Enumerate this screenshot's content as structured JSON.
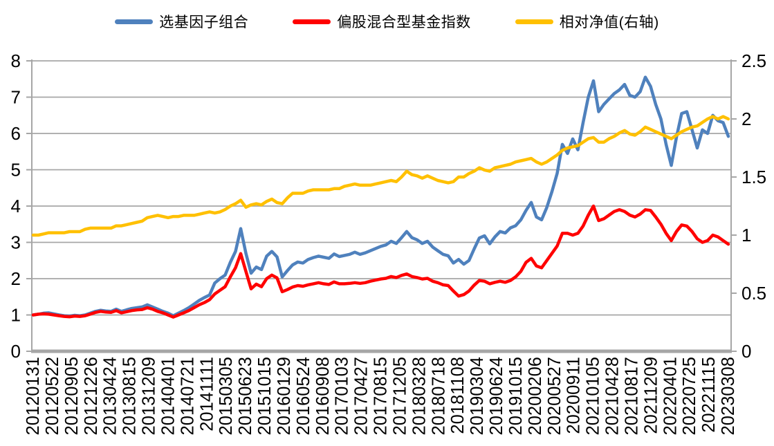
{
  "legend": {
    "items": [
      {
        "label": "选基因子组合",
        "color": "#4F81BD"
      },
      {
        "label": "偏股混合型基金指数",
        "color": "#FF0000"
      },
      {
        "label": "相对净值(右轴)",
        "color": "#FFC000"
      }
    ]
  },
  "chart_data": {
    "type": "line",
    "title": "",
    "grid": true,
    "legend_position": "top",
    "left_axis": {
      "ticks": [
        "0",
        "1",
        "2",
        "3",
        "4",
        "5",
        "6",
        "7",
        "8"
      ],
      "range": [
        0,
        8
      ]
    },
    "right_axis": {
      "ticks": [
        "0",
        "0.5",
        "1",
        "1.5",
        "2",
        "2.5"
      ],
      "range": [
        0,
        2.5
      ]
    },
    "x_labels": [
      "20120131",
      "20120522",
      "20120905",
      "20121226",
      "20130424",
      "20130815",
      "20131209",
      "20140401",
      "20140721",
      "20141111",
      "20150305",
      "20150623",
      "20151015",
      "20160129",
      "20160524",
      "20160908",
      "20170103",
      "20170427",
      "20170815",
      "20171205",
      "20180328",
      "20180718",
      "20181108",
      "20190304",
      "20190624",
      "20191015",
      "20200206",
      "20200527",
      "20200911",
      "20210105",
      "20210428",
      "20210817",
      "20211209",
      "20220401",
      "20220725",
      "20221115",
      "20230308"
    ],
    "sampling": "monthly 2012-01 to 2023-03",
    "series": [
      {
        "name": "选基因子组合",
        "axis": "left",
        "color": "#4F81BD",
        "values": [
          1.0,
          1.02,
          1.05,
          1.06,
          1.03,
          1.0,
          0.98,
          0.97,
          0.99,
          0.98,
          1.0,
          1.05,
          1.1,
          1.13,
          1.11,
          1.1,
          1.16,
          1.1,
          1.14,
          1.18,
          1.2,
          1.22,
          1.28,
          1.22,
          1.16,
          1.1,
          1.05,
          0.98,
          1.05,
          1.12,
          1.2,
          1.3,
          1.4,
          1.48,
          1.55,
          1.88,
          2.0,
          2.1,
          2.45,
          2.75,
          3.38,
          2.7,
          2.15,
          2.32,
          2.25,
          2.62,
          2.75,
          2.6,
          2.05,
          2.22,
          2.38,
          2.46,
          2.43,
          2.53,
          2.58,
          2.62,
          2.59,
          2.56,
          2.68,
          2.61,
          2.64,
          2.67,
          2.73,
          2.67,
          2.71,
          2.77,
          2.83,
          2.89,
          2.93,
          3.03,
          2.97,
          3.13,
          3.3,
          3.13,
          3.07,
          2.97,
          3.03,
          2.87,
          2.77,
          2.67,
          2.63,
          2.43,
          2.53,
          2.4,
          2.5,
          2.82,
          3.12,
          3.18,
          2.96,
          3.15,
          3.3,
          3.26,
          3.4,
          3.46,
          3.62,
          3.88,
          4.1,
          3.7,
          3.62,
          3.96,
          4.4,
          4.9,
          5.7,
          5.45,
          5.85,
          5.55,
          6.3,
          7.0,
          7.45,
          6.6,
          6.8,
          6.95,
          7.1,
          7.2,
          7.35,
          7.05,
          7.0,
          7.15,
          7.55,
          7.3,
          6.8,
          6.4,
          5.7,
          5.12,
          5.9,
          6.55,
          6.6,
          6.1,
          5.6,
          6.1,
          6.0,
          6.5,
          6.35,
          6.3,
          5.92
        ]
      },
      {
        "name": "偏股混合型基金指数",
        "axis": "left",
        "color": "#FF0000",
        "values": [
          1.0,
          1.02,
          1.03,
          1.02,
          1.0,
          0.98,
          0.96,
          0.95,
          0.97,
          0.96,
          0.98,
          1.02,
          1.07,
          1.1,
          1.08,
          1.07,
          1.12,
          1.06,
          1.09,
          1.12,
          1.14,
          1.15,
          1.2,
          1.16,
          1.1,
          1.06,
          1.0,
          0.94,
          1.0,
          1.06,
          1.12,
          1.2,
          1.28,
          1.34,
          1.42,
          1.58,
          1.68,
          1.78,
          2.05,
          2.3,
          2.69,
          2.2,
          1.72,
          1.85,
          1.78,
          2.0,
          2.1,
          2.02,
          1.64,
          1.7,
          1.77,
          1.81,
          1.79,
          1.83,
          1.86,
          1.89,
          1.86,
          1.84,
          1.91,
          1.86,
          1.86,
          1.87,
          1.89,
          1.87,
          1.89,
          1.93,
          1.96,
          1.99,
          2.01,
          2.06,
          2.03,
          2.09,
          2.13,
          2.06,
          2.03,
          1.99,
          2.01,
          1.93,
          1.89,
          1.83,
          1.81,
          1.66,
          1.52,
          1.56,
          1.66,
          1.82,
          1.95,
          1.93,
          1.86,
          1.9,
          1.93,
          1.9,
          1.95,
          2.05,
          2.2,
          2.45,
          2.56,
          2.35,
          2.3,
          2.5,
          2.7,
          2.9,
          3.25,
          3.25,
          3.2,
          3.25,
          3.45,
          3.75,
          4.0,
          3.6,
          3.65,
          3.75,
          3.85,
          3.9,
          3.85,
          3.75,
          3.7,
          3.78,
          3.9,
          3.88,
          3.7,
          3.5,
          3.25,
          3.05,
          3.3,
          3.48,
          3.45,
          3.3,
          3.1,
          3.0,
          3.05,
          3.2,
          3.15,
          3.05,
          2.95
        ]
      },
      {
        "name": "相对净值(右轴)",
        "axis": "right",
        "color": "#FFC000",
        "values": [
          1.0,
          1.0,
          1.01,
          1.02,
          1.02,
          1.02,
          1.02,
          1.03,
          1.03,
          1.03,
          1.05,
          1.06,
          1.06,
          1.06,
          1.06,
          1.06,
          1.08,
          1.08,
          1.09,
          1.1,
          1.11,
          1.12,
          1.15,
          1.16,
          1.17,
          1.16,
          1.15,
          1.16,
          1.16,
          1.17,
          1.17,
          1.17,
          1.18,
          1.19,
          1.2,
          1.19,
          1.2,
          1.22,
          1.25,
          1.27,
          1.3,
          1.24,
          1.26,
          1.27,
          1.26,
          1.29,
          1.31,
          1.28,
          1.27,
          1.32,
          1.36,
          1.36,
          1.36,
          1.38,
          1.39,
          1.39,
          1.39,
          1.39,
          1.4,
          1.4,
          1.42,
          1.43,
          1.44,
          1.43,
          1.43,
          1.43,
          1.44,
          1.45,
          1.46,
          1.47,
          1.46,
          1.5,
          1.55,
          1.52,
          1.51,
          1.49,
          1.51,
          1.49,
          1.47,
          1.46,
          1.45,
          1.46,
          1.5,
          1.5,
          1.53,
          1.55,
          1.58,
          1.56,
          1.55,
          1.58,
          1.59,
          1.6,
          1.61,
          1.63,
          1.64,
          1.65,
          1.66,
          1.63,
          1.61,
          1.63,
          1.66,
          1.69,
          1.73,
          1.75,
          1.76,
          1.77,
          1.8,
          1.83,
          1.84,
          1.8,
          1.8,
          1.83,
          1.85,
          1.88,
          1.9,
          1.87,
          1.86,
          1.89,
          1.93,
          1.91,
          1.89,
          1.87,
          1.85,
          1.83,
          1.86,
          1.89,
          1.91,
          1.93,
          1.94,
          1.97,
          2.0,
          2.02,
          2.0,
          2.02,
          2.0
        ]
      }
    ],
    "style": {
      "gridline_color": "#A6A6A6",
      "axis_color": "#A6A6A6",
      "text_color": "#000000",
      "background": "#FFFFFF"
    }
  }
}
